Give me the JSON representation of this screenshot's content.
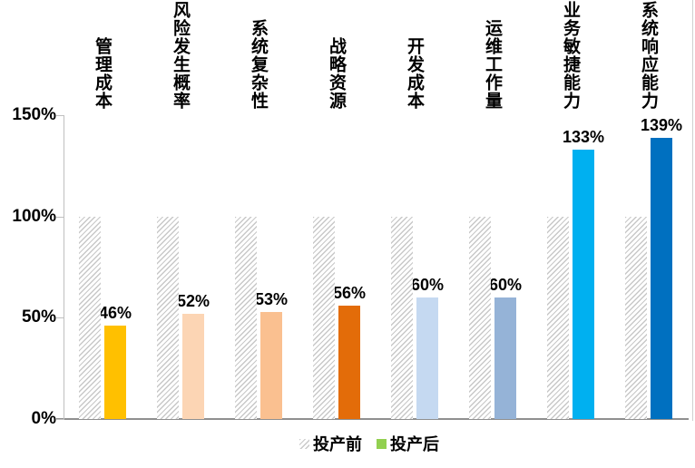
{
  "chart_data": {
    "type": "bar",
    "title": "",
    "categories": [
      "管理成本",
      "风险发生概率",
      "系统复杂性",
      "战略资源",
      "开发成本",
      "运维工作量",
      "业务敏捷能力",
      "系统响应能力"
    ],
    "series": [
      {
        "name": "投产前",
        "values": [
          100,
          100,
          100,
          100,
          100,
          100,
          100,
          100
        ],
        "fill": "hatched",
        "hatch_color": "#C8C8C8",
        "legend_swatch": "hatched"
      },
      {
        "name": "投产后",
        "values": [
          46,
          52,
          53,
          56,
          60,
          60,
          133,
          139
        ],
        "bar_colors": [
          "#FFC000",
          "#FCD5B4",
          "#FAC090",
          "#E36C09",
          "#C5D9F1",
          "#95B3D7",
          "#00B0F0",
          "#0070C0"
        ],
        "legend_swatch_color": "#92D050"
      }
    ],
    "value_labels": [
      "46%",
      "52%",
      "53%",
      "56%",
      "60%",
      "60%",
      "133%",
      "139%"
    ],
    "y_ticks": [
      {
        "label": "150%",
        "value": 150
      },
      {
        "label": "100%",
        "value": 100
      },
      {
        "label": "50%",
        "value": 50
      },
      {
        "label": "0%",
        "value": 0
      }
    ],
    "ylim": [
      0,
      150
    ],
    "xlabel": "",
    "ylabel": "",
    "grid": false,
    "legend_position": "bottom",
    "axis_color": "#BFBFBF",
    "baseline_color": "#8F8F8F",
    "label_color": "#000000"
  }
}
